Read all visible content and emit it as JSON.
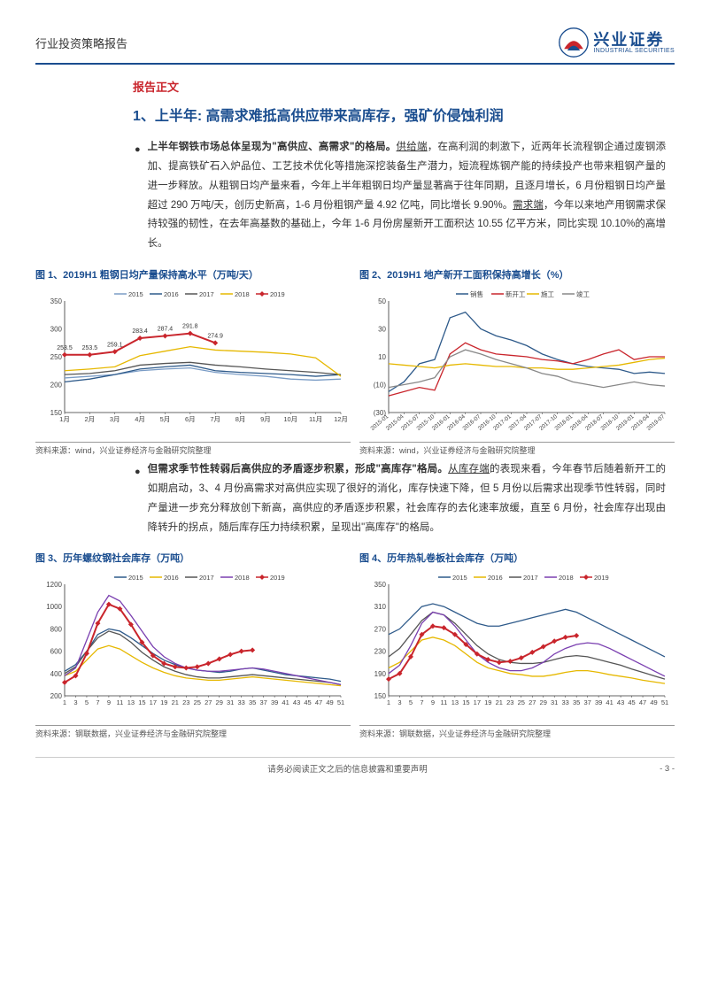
{
  "header": {
    "category": "行业投资策略报告"
  },
  "logo": {
    "cn": "兴业证券",
    "en": "INDUSTRIAL SECURITIES"
  },
  "report_label": "报告正文",
  "section1_title": "1、上半年: 高需求难抵高供应带来高库存，强矿价侵蚀利润",
  "para1_lead": "上半年钢铁市场总体呈现为\"高供应、高需求\"的格局。",
  "para1_u1": "供给端",
  "para1_body": "，在高利润的刺激下，近两年长流程钢企通过废钢添加、提高铁矿石入炉品位、工艺技术优化等措施深挖装备生产潜力，短流程炼钢产能的持续投产也带来粗钢产量的进一步释放。从粗钢日均产量来看，今年上半年粗钢日均产量显著高于往年同期，且逐月增长，6 月份粗钢日均产量超过 290 万吨/天，创历史新高，1-6 月份粗钢产量 4.92 亿吨，同比增长 9.90%。",
  "para1_u2": "需求端",
  "para1_body2": "，今年以来地产用钢需求保持较强的韧性，在去年高基数的基础上，今年 1-6 月份房屋新开工面积达 10.55 亿平方米，同比实现 10.10%的高增长。",
  "chart1": {
    "title": "图 1、2019H1 粗钢日均产量保持高水平（万吨/天）",
    "source": "资料来源：wind，兴业证券经济与金融研究院整理",
    "legend": [
      "2015",
      "2016",
      "2017",
      "2018",
      "2019"
    ],
    "colors": [
      "#7a9cc6",
      "#2e5a8a",
      "#555",
      "#e6b800",
      "#c9252c"
    ],
    "x_labels": [
      "1月",
      "2月",
      "3月",
      "4月",
      "5月",
      "6月",
      "7月",
      "8月",
      "9月",
      "10月",
      "11月",
      "12月"
    ],
    "ylim": [
      150,
      350
    ],
    "yticks": [
      150,
      200,
      250,
      300,
      350
    ],
    "series": {
      "2015": [
        212,
        215,
        218,
        225,
        228,
        230,
        222,
        218,
        215,
        210,
        208,
        210
      ],
      "2016": [
        205,
        210,
        218,
        228,
        232,
        235,
        225,
        222,
        220,
        218,
        215,
        218
      ],
      "2017": [
        218,
        220,
        225,
        235,
        238,
        240,
        235,
        232,
        228,
        225,
        222,
        218
      ],
      "2018": [
        225,
        228,
        232,
        252,
        260,
        268,
        262,
        260,
        258,
        255,
        248,
        215
      ],
      "2019": [
        253.5,
        253.5,
        259.1,
        283.4,
        287.4,
        291.8,
        274.9
      ]
    },
    "labels_2019": [
      "253.5",
      "253.5",
      "259.1",
      "283.4",
      "287.4",
      "291.8",
      "274.9"
    ]
  },
  "chart2": {
    "title": "图 2、2019H1 地产新开工面积保持高增长（%）",
    "source": "资料来源：wind，兴业证券经济与金融研究院整理",
    "legend": [
      "销售",
      "新开工",
      "施工",
      "竣工"
    ],
    "colors": [
      "#2e5a8a",
      "#c9252c",
      "#e6b800",
      "#888"
    ],
    "ylim": [
      -30,
      50
    ],
    "yticks": [
      -30,
      -10,
      10,
      30,
      50
    ],
    "x_labels": [
      "2015-01",
      "2015-04",
      "2015-07",
      "2015-10",
      "2016-01",
      "2016-04",
      "2016-07",
      "2016-10",
      "2017-01",
      "2017-04",
      "2017-07",
      "2017-10",
      "2018-01",
      "2018-04",
      "2018-07",
      "2018-10",
      "2019-01",
      "2019-04",
      "2019-07"
    ],
    "series": {
      "sales": [
        -15,
        -8,
        5,
        8,
        38,
        42,
        30,
        25,
        22,
        18,
        12,
        8,
        5,
        3,
        2,
        1,
        -2,
        -1,
        -2
      ],
      "newstart": [
        -18,
        -15,
        -12,
        -14,
        12,
        20,
        15,
        12,
        11,
        10,
        8,
        7,
        5,
        8,
        12,
        15,
        8,
        10,
        10
      ],
      "constr": [
        5,
        4,
        3,
        2,
        4,
        5,
        4,
        3,
        3,
        2,
        2,
        1,
        1,
        2,
        3,
        4,
        6,
        8,
        9
      ],
      "complete": [
        -12,
        -10,
        -8,
        -5,
        10,
        15,
        12,
        8,
        5,
        2,
        -2,
        -4,
        -8,
        -10,
        -12,
        -10,
        -8,
        -10,
        -11
      ]
    }
  },
  "para2_lead": "但需求季节性转弱后高供应的矛盾逐步积累，形成\"高库存\"格局。",
  "para2_u1": "从库存端",
  "para2_body": "的表现来看，今年春节后随着新开工的如期启动，3、4 月份高需求对高供应实现了很好的消化，库存快速下降，但 5 月份以后需求出现季节性转弱，同时产量进一步充分释放创下新高，高供应的矛盾逐步积累，社会库存的去化速率放缓，直至 6 月份，社会库存出现由降转升的拐点，随后库存压力持续积累，呈现出\"高库存\"的格局。",
  "chart3": {
    "title": "图 3、历年螺纹钢社会库存（万吨）",
    "source": "资料来源：钢联数据，兴业证券经济与金融研究院整理",
    "legend": [
      "2015",
      "2016",
      "2017",
      "2018",
      "2019"
    ],
    "colors": [
      "#2e5a8a",
      "#e6b800",
      "#555",
      "#7a3fb0",
      "#c9252c"
    ],
    "x_labels": [
      "1",
      "3",
      "5",
      "7",
      "9",
      "11",
      "13",
      "15",
      "17",
      "19",
      "21",
      "23",
      "25",
      "27",
      "29",
      "31",
      "33",
      "35",
      "37",
      "39",
      "41",
      "43",
      "45",
      "47",
      "49",
      "51"
    ],
    "ylim": [
      200,
      1200
    ],
    "yticks": [
      200,
      400,
      600,
      800,
      1000,
      1200
    ],
    "series": {
      "2015": [
        420,
        480,
        600,
        750,
        800,
        780,
        720,
        650,
        580,
        520,
        480,
        450,
        430,
        420,
        410,
        420,
        440,
        450,
        430,
        410,
        390,
        380,
        370,
        360,
        350,
        330
      ],
      "2016": [
        380,
        420,
        520,
        620,
        650,
        620,
        560,
        500,
        450,
        410,
        380,
        360,
        350,
        340,
        340,
        350,
        360,
        370,
        360,
        350,
        340,
        330,
        320,
        310,
        300,
        290
      ],
      "2017": [
        400,
        460,
        600,
        720,
        780,
        750,
        680,
        590,
        520,
        460,
        420,
        390,
        370,
        360,
        360,
        370,
        380,
        390,
        380,
        370,
        360,
        350,
        340,
        330,
        320,
        300
      ],
      "2018": [
        380,
        450,
        700,
        950,
        1100,
        1050,
        920,
        780,
        640,
        550,
        490,
        450,
        430,
        420,
        420,
        430,
        440,
        450,
        440,
        420,
        400,
        380,
        360,
        340,
        320,
        300
      ],
      "2019": [
        320,
        380,
        580,
        850,
        1020,
        980,
        840,
        680,
        560,
        490,
        460,
        450,
        460,
        490,
        530,
        570,
        600,
        610
      ]
    }
  },
  "chart4": {
    "title": "图 4、历年热轧卷板社会库存（万吨）",
    "source": "资料来源：钢联数据，兴业证券经济与金融研究院整理",
    "legend": [
      "2015",
      "2016",
      "2017",
      "2018",
      "2019"
    ],
    "colors": [
      "#2e5a8a",
      "#e6b800",
      "#555",
      "#7a3fb0",
      "#c9252c"
    ],
    "x_labels": [
      "1",
      "3",
      "5",
      "7",
      "9",
      "11",
      "13",
      "15",
      "17",
      "19",
      "21",
      "23",
      "25",
      "27",
      "29",
      "31",
      "33",
      "35",
      "37",
      "39",
      "41",
      "43",
      "45",
      "47",
      "49",
      "51"
    ],
    "ylim": [
      150,
      350
    ],
    "yticks": [
      150,
      190,
      230,
      270,
      310,
      350
    ],
    "series": {
      "2015": [
        260,
        270,
        290,
        310,
        315,
        310,
        300,
        290,
        280,
        275,
        275,
        280,
        285,
        290,
        295,
        300,
        305,
        300,
        290,
        280,
        270,
        260,
        250,
        240,
        230,
        220
      ],
      "2016": [
        200,
        210,
        230,
        250,
        255,
        250,
        240,
        225,
        210,
        200,
        195,
        190,
        188,
        185,
        185,
        188,
        192,
        195,
        195,
        192,
        188,
        185,
        182,
        178,
        175,
        172
      ],
      "2017": [
        220,
        235,
        260,
        285,
        300,
        295,
        280,
        260,
        240,
        225,
        215,
        210,
        208,
        208,
        210,
        215,
        220,
        222,
        220,
        215,
        210,
        205,
        198,
        192,
        186,
        180
      ],
      "2018": [
        190,
        205,
        240,
        280,
        300,
        295,
        275,
        250,
        225,
        210,
        200,
        195,
        195,
        200,
        210,
        225,
        235,
        242,
        245,
        243,
        235,
        225,
        215,
        205,
        195,
        185
      ],
      "2019": [
        180,
        190,
        220,
        260,
        275,
        272,
        260,
        242,
        225,
        215,
        210,
        212,
        218,
        228,
        238,
        248,
        255,
        258
      ]
    }
  },
  "footer": {
    "disclaimer": "请务必阅读正文之后的信息披露和重要声明",
    "page": "- 3 -"
  }
}
